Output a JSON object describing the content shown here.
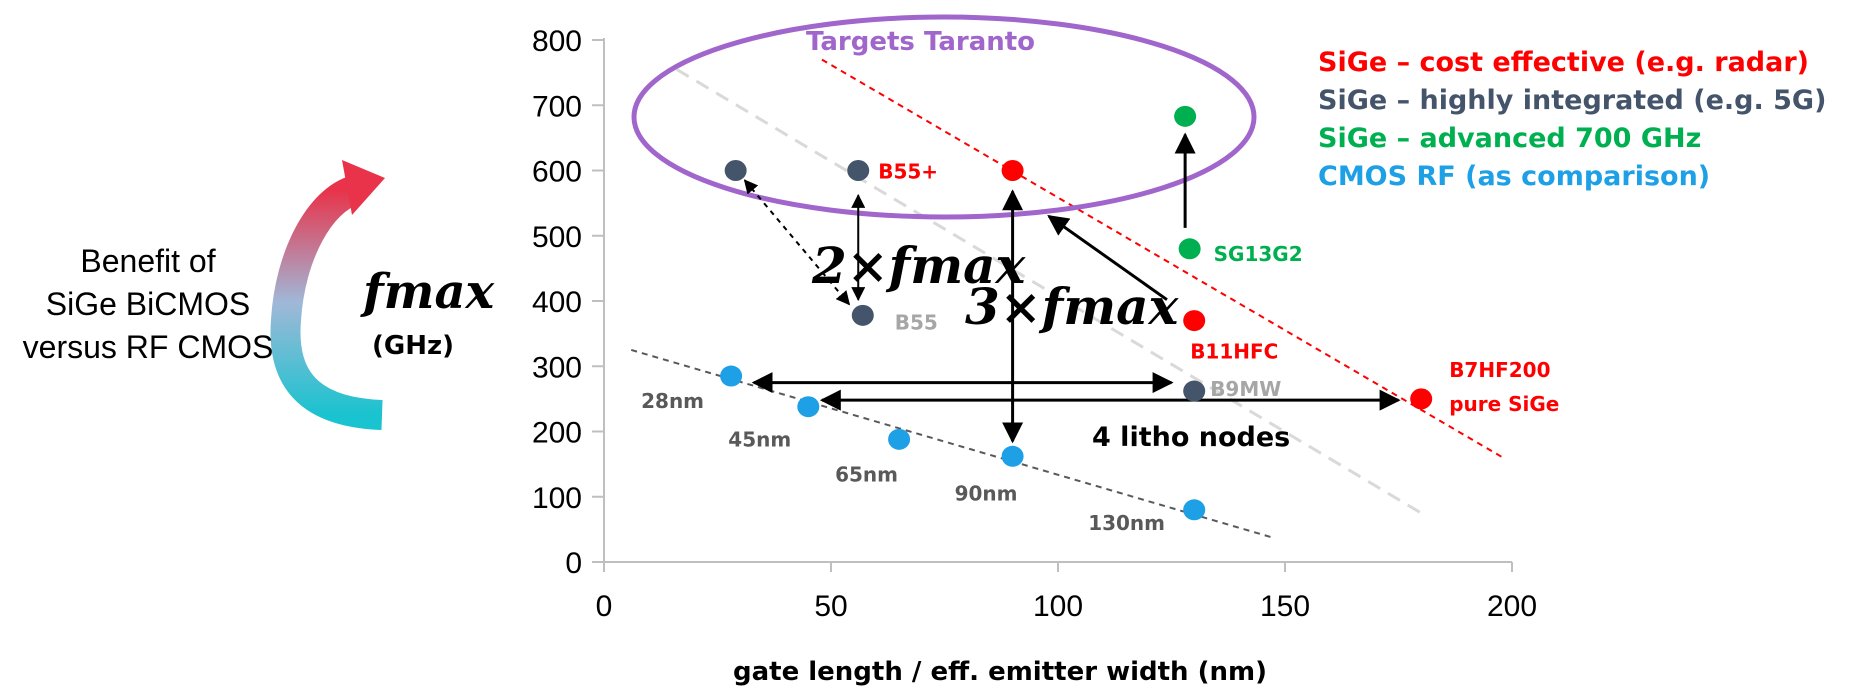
{
  "side_text": [
    "Benefit of",
    "SiGe BiCMOS",
    "versus RF CMOS"
  ],
  "target_label": "Targets Taranto",
  "annotations": {
    "two_x": "2×𝒇𝒎𝒂𝒙",
    "three_x": "3×𝒇𝒎𝒂𝒙",
    "litho": "4 litho nodes"
  },
  "colors": {
    "red": "#ff0000",
    "navy": "#44546a",
    "green": "#00b050",
    "blue": "#1ea0e6",
    "purple": "#a066cc",
    "label_gray": "#a6a6a6",
    "label_dark": "#595959"
  },
  "chart_data": {
    "type": "scatter",
    "xlabel": "gate length / eff. emitter width (nm)",
    "ylabel": "𝒇𝒎𝒂𝒙",
    "ylabel_unit": "(GHz)",
    "xlim": [
      0,
      200
    ],
    "ylim": [
      0,
      800
    ],
    "x_ticks": [
      "0",
      "50",
      "100",
      "150",
      "200"
    ],
    "y_ticks": [
      "0",
      "100",
      "200",
      "300",
      "400",
      "500",
      "600",
      "700",
      "800"
    ],
    "legend_position": "top-right",
    "legend": [
      {
        "label": "SiGe – cost effective (e.g. radar)",
        "color": "#ff0000"
      },
      {
        "label": "SiGe – highly integrated (e.g. 5G)",
        "color": "#44546a"
      },
      {
        "label": "SiGe – advanced 700 GHz",
        "color": "#00b050"
      },
      {
        "label": "CMOS RF (as comparison)",
        "color": "#1ea0e6"
      }
    ],
    "series": [
      {
        "group": "cost-effective",
        "color": "#ff0000",
        "points": [
          {
            "x": 90,
            "y": 600,
            "label": ""
          },
          {
            "x": 130,
            "y": 370,
            "label": "B11HFC"
          },
          {
            "x": 180,
            "y": 250,
            "label": "B7HF200 pure SiGe"
          }
        ]
      },
      {
        "group": "highly-integrated",
        "color": "#44546a",
        "points": [
          {
            "x": 29,
            "y": 600,
            "label": ""
          },
          {
            "x": 56,
            "y": 600,
            "label": "B55+"
          },
          {
            "x": 57,
            "y": 378,
            "label": "B55"
          },
          {
            "x": 130,
            "y": 262,
            "label": "B9MW"
          }
        ]
      },
      {
        "group": "advanced",
        "color": "#00b050",
        "points": [
          {
            "x": 128,
            "y": 683,
            "label": ""
          },
          {
            "x": 129,
            "y": 480,
            "label": "SG13G2"
          }
        ]
      },
      {
        "group": "cmos",
        "color": "#1ea0e6",
        "points": [
          {
            "x": 28,
            "y": 285,
            "label": "28nm"
          },
          {
            "x": 45,
            "y": 238,
            "label": "45nm"
          },
          {
            "x": 65,
            "y": 188,
            "label": "65nm"
          },
          {
            "x": 90,
            "y": 162,
            "label": "90nm"
          },
          {
            "x": 130,
            "y": 80,
            "label": "130nm"
          }
        ]
      }
    ]
  }
}
